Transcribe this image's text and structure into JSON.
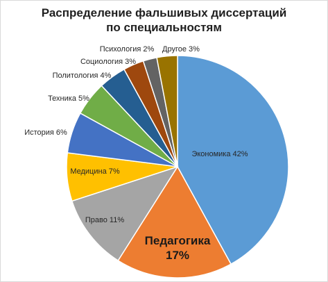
{
  "chart_data": {
    "type": "pie",
    "title_line1": "Распределение фальшивых диссертаций",
    "title_line2": "по специальностям",
    "slices": [
      {
        "label": "Экономика 42%",
        "value": 42,
        "color": "#5b9bd5"
      },
      {
        "label_line1": "Педагогика",
        "label_line2": "17%",
        "value": 17,
        "color": "#ed7d31"
      },
      {
        "label": "Право 11%",
        "value": 11,
        "color": "#a5a5a5"
      },
      {
        "label": "Медицина 7%",
        "value": 7,
        "color": "#ffc000"
      },
      {
        "label": "История 6%",
        "value": 6,
        "color": "#4472c4"
      },
      {
        "label": "Техника 5%",
        "value": 5,
        "color": "#70ad47"
      },
      {
        "label": "Политология 4%",
        "value": 4,
        "color": "#255e91"
      },
      {
        "label": "Социология 3%",
        "value": 3,
        "color": "#9e480e"
      },
      {
        "label": "Психология 2%",
        "value": 2,
        "color": "#636363"
      },
      {
        "label": "Другое 3%",
        "value": 3,
        "color": "#997300"
      }
    ]
  }
}
